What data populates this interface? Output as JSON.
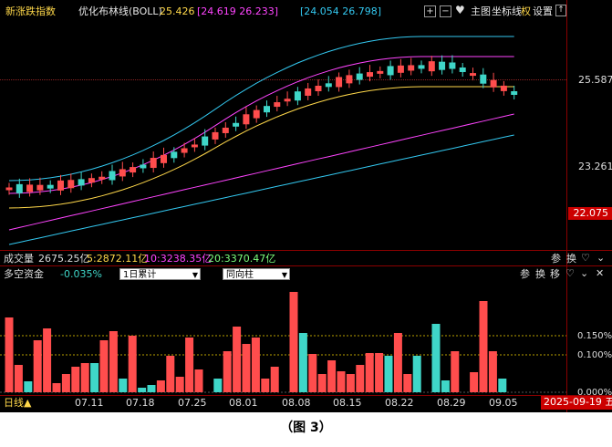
{
  "header": {
    "index_name": "新涨跌指数",
    "indicator_name": "优化布林线(BOLL)",
    "boll_mid": "25.426",
    "boll_upper": "[24.619 26.233]",
    "boll_lower": "[24.054 26.798]",
    "main_chart": "主图",
    "coord_line": "坐标线",
    "right_label": "权",
    "settings": "设置"
  },
  "price_axis": {
    "high": "25.587",
    "mid": "23.261",
    "current": "22.075"
  },
  "volume_bar": {
    "label": "成交量",
    "value": "2675.25亿",
    "ma5": "5:2872.11亿",
    "ma10": "10:3238.35亿",
    "ma20": "20:3370.47亿",
    "btn_param": "参",
    "btn_switch": "换"
  },
  "fund_panel": {
    "label": "多空资金",
    "value": "-0.035%",
    "select1": "1日累计",
    "select2": "同向柱",
    "btn_param": "参",
    "btn_switch": "换",
    "btn_move": "移",
    "axis": [
      "0.150%",
      "0.100%",
      "0.000%"
    ]
  },
  "time_axis": {
    "period": "日线▲",
    "dates": [
      "07.11",
      "07.18",
      "07.25",
      "08.01",
      "08.08",
      "08.15",
      "08.22",
      "08.29",
      "09.05"
    ],
    "current_date": "2025-09-19 五"
  },
  "figure_caption": "（图 3）",
  "colors": {
    "up": "#ff4d4d",
    "down": "#3fd6c8",
    "mid": "#ffd84a",
    "upper": "#ff44ff",
    "lower": "#33c8f0"
  }
}
